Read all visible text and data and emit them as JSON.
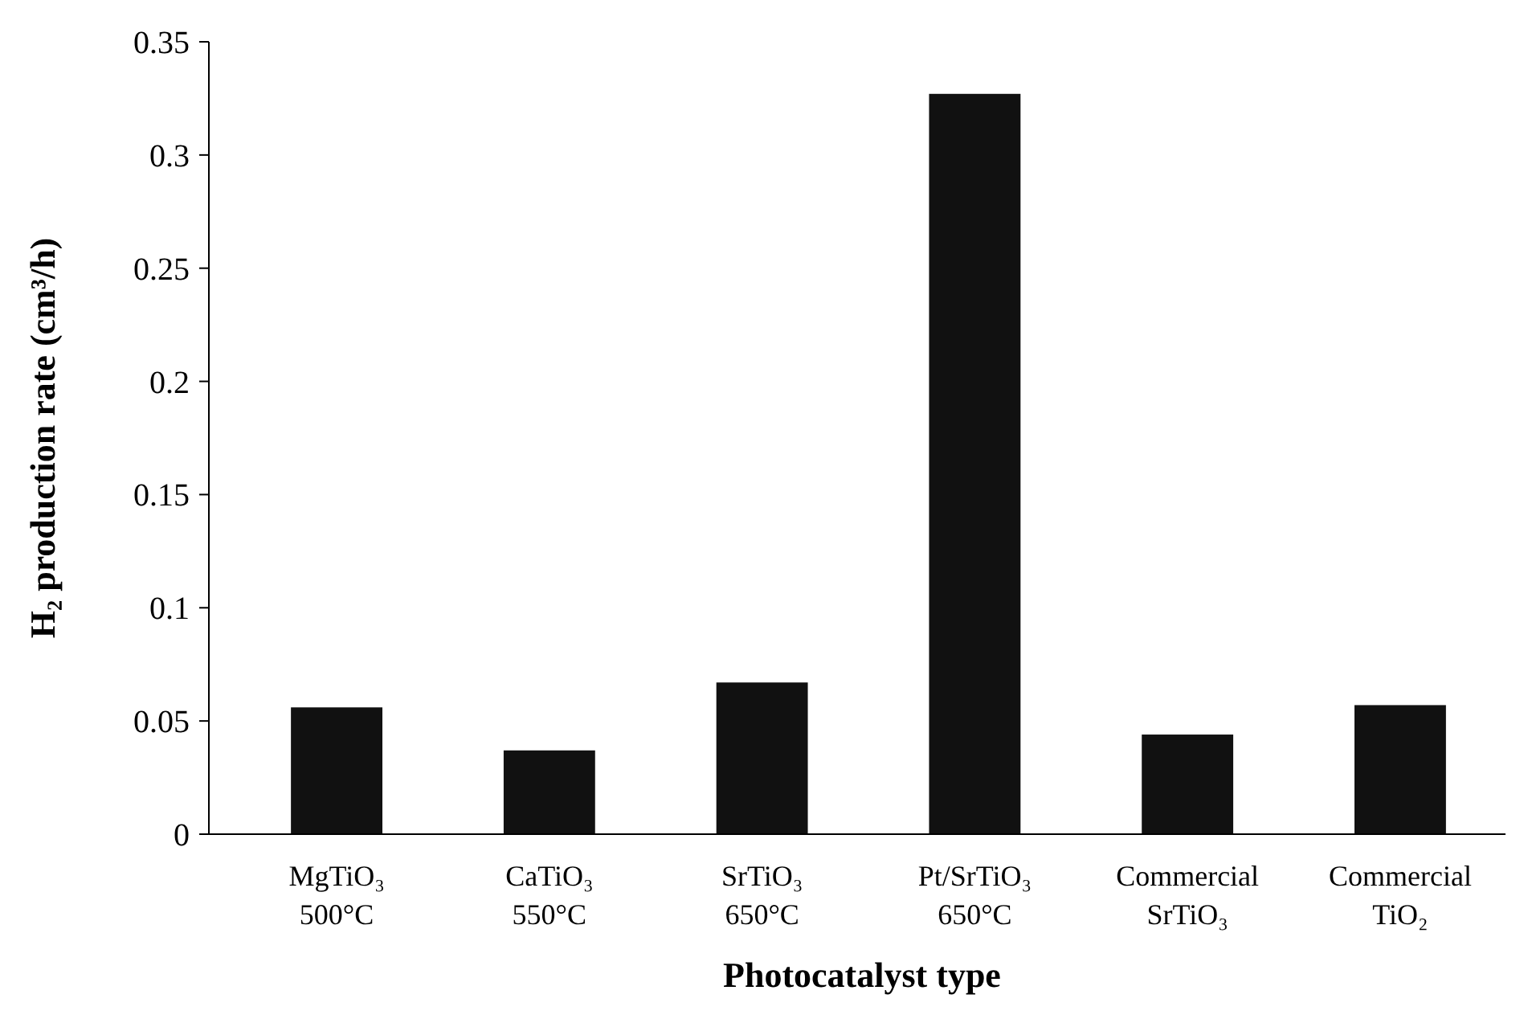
{
  "chart_data": {
    "type": "bar",
    "xlabel": "Photocatalyst type",
    "ylabel": "H₂ production rate (cm³/h)",
    "categories": [
      "MgTiO₃\n500°C",
      "CaTiO₃\n550°C",
      "SrTiO₃\n650°C",
      "Pt/SrTiO₃\n650°C",
      "Commercial\nSrTiO₃",
      "Commercial\nTiO₂"
    ],
    "values": [
      0.056,
      0.037,
      0.067,
      0.327,
      0.044,
      0.057
    ],
    "color": "#111111",
    "ylim": [
      0,
      0.35
    ],
    "yticks": [
      0,
      0.05,
      0.1,
      0.15,
      0.2,
      0.25,
      0.3,
      0.35
    ],
    "grid": false
  }
}
